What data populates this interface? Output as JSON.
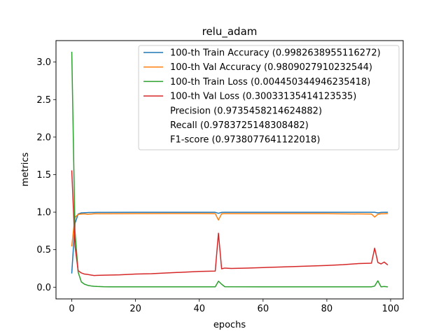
{
  "chart_data": {
    "type": "line",
    "title": "relu_adam",
    "xlabel": "epochs",
    "ylabel": "metrics",
    "xlim": [
      -4.95,
      103.95
    ],
    "ylim": [
      -0.156,
      3.286
    ],
    "xticks": [
      0,
      20,
      40,
      60,
      80,
      100
    ],
    "yticks": [
      0.0,
      0.5,
      1.0,
      1.5,
      2.0,
      2.5,
      3.0
    ],
    "xtick_labels": [
      "0",
      "20",
      "40",
      "60",
      "80",
      "100"
    ],
    "ytick_labels": [
      "0.0",
      "0.5",
      "1.0",
      "1.5",
      "2.0",
      "2.5",
      "3.0"
    ],
    "legend_position": "top-right",
    "series": [
      {
        "name": "100-th Train Accuracy (0.9982638955116272)",
        "color": "#1f77b4",
        "x": [
          0,
          1,
          2,
          3,
          4,
          5,
          6,
          7,
          8,
          10,
          20,
          30,
          40,
          45,
          46,
          47,
          48,
          60,
          80,
          94,
          95,
          96,
          97,
          98,
          99
        ],
        "y": [
          0.19,
          0.85,
          0.975,
          0.99,
          0.993,
          0.995,
          0.996,
          0.996,
          0.997,
          0.997,
          0.998,
          0.998,
          0.998,
          0.998,
          0.985,
          0.997,
          0.998,
          0.998,
          0.998,
          0.998,
          0.998,
          0.99,
          0.997,
          0.998,
          0.998
        ]
      },
      {
        "name": "100-th Val Accuracy (0.9809027910232544)",
        "color": "#ff7f0e",
        "x": [
          0,
          1,
          2,
          3,
          4,
          5,
          6,
          7,
          8,
          10,
          20,
          30,
          40,
          45,
          46,
          47,
          48,
          60,
          80,
          94,
          95,
          96,
          97,
          98,
          99
        ],
        "y": [
          0.55,
          0.93,
          0.97,
          0.975,
          0.977,
          0.972,
          0.975,
          0.978,
          0.978,
          0.978,
          0.98,
          0.981,
          0.981,
          0.98,
          0.895,
          0.978,
          0.98,
          0.98,
          0.98,
          0.975,
          0.935,
          0.972,
          0.978,
          0.979,
          0.981
        ]
      },
      {
        "name": "100-th Train Loss (0.004450344946235418)",
        "color": "#2ca02c",
        "x": [
          0,
          1,
          2,
          3,
          4,
          5,
          6,
          7,
          8,
          10,
          12,
          15,
          20,
          30,
          40,
          45,
          46,
          47,
          48,
          60,
          80,
          94,
          95,
          96,
          97,
          98,
          99
        ],
        "y": [
          3.13,
          0.75,
          0.2,
          0.07,
          0.04,
          0.025,
          0.017,
          0.012,
          0.009,
          0.006,
          0.005,
          0.005,
          0.005,
          0.005,
          0.005,
          0.005,
          0.08,
          0.04,
          0.006,
          0.005,
          0.005,
          0.005,
          0.015,
          0.085,
          0.005,
          0.01,
          0.0045
        ]
      },
      {
        "name": "100-th Val Loss (0.30033135414123535)",
        "color": "#d62728",
        "x": [
          0,
          1,
          2,
          3,
          4,
          5,
          6,
          7,
          8,
          10,
          15,
          20,
          25,
          30,
          35,
          40,
          45,
          46,
          47,
          48,
          50,
          55,
          60,
          65,
          70,
          75,
          80,
          85,
          90,
          94,
          95,
          96,
          97,
          98,
          99
        ],
        "y": [
          1.55,
          0.55,
          0.22,
          0.19,
          0.175,
          0.17,
          0.162,
          0.155,
          0.158,
          0.16,
          0.165,
          0.175,
          0.18,
          0.19,
          0.2,
          0.21,
          0.215,
          0.72,
          0.245,
          0.255,
          0.25,
          0.255,
          0.262,
          0.268,
          0.275,
          0.282,
          0.29,
          0.3,
          0.315,
          0.32,
          0.52,
          0.33,
          0.31,
          0.335,
          0.3
        ]
      }
    ],
    "legend_extra": [
      "Precision (0.9735458214624882)",
      "Recall (0.9783725148308482)",
      "F1-score (0.9738077641122018)"
    ]
  }
}
